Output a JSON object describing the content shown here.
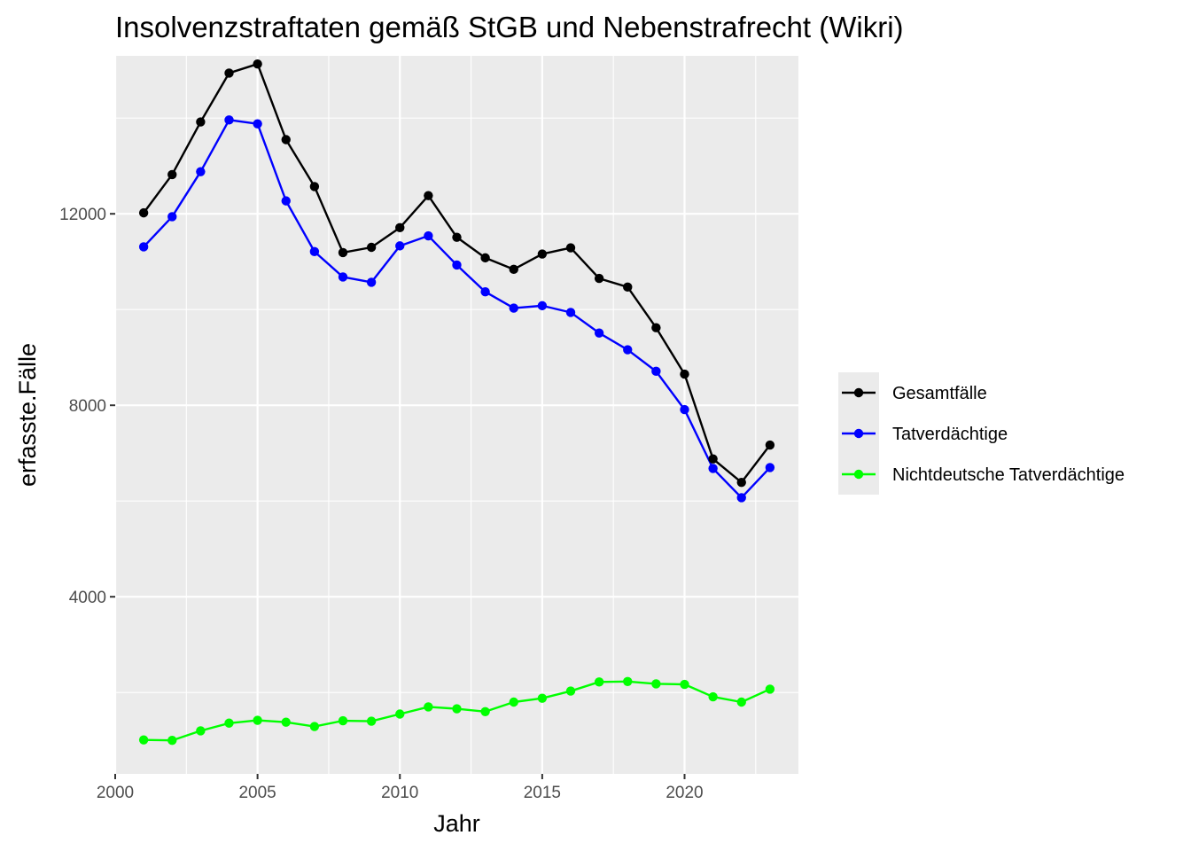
{
  "chart_data": {
    "type": "line",
    "title": "Insolvenzstraftaten gemäß StGB und Nebenstrafrecht (Wikri)",
    "xlabel": "Jahr",
    "ylabel": "erfasste.Fälle",
    "xlim": [
      2000,
      2024
    ],
    "ylim": [
      300,
      15300
    ],
    "x_ticks": [
      2000,
      2005,
      2010,
      2015,
      2020
    ],
    "x_tick_labels": [
      "2000",
      "2005",
      "2010",
      "2015",
      "2020"
    ],
    "y_ticks": [
      4000,
      8000,
      12000
    ],
    "y_tick_labels": [
      "4000",
      "8000",
      "12000"
    ],
    "grid": true,
    "legend_position": "right",
    "x": [
      2001,
      2002,
      2003,
      2004,
      2005,
      2006,
      2007,
      2008,
      2009,
      2010,
      2011,
      2012,
      2013,
      2014,
      2015,
      2016,
      2017,
      2018,
      2019,
      2020,
      2021,
      2022,
      2023
    ],
    "series": [
      {
        "name": "Gesamtfälle",
        "color": "#000000",
        "values": [
          12020,
          12820,
          13920,
          14940,
          15130,
          13550,
          12570,
          11190,
          11300,
          11710,
          12380,
          11510,
          11080,
          10840,
          11160,
          11290,
          10650,
          10470,
          9620,
          8650,
          6880,
          6390,
          7170
        ]
      },
      {
        "name": "Tatverdächtige",
        "color": "#0000ff",
        "values": [
          11310,
          11940,
          12880,
          13960,
          13880,
          12270,
          11210,
          10680,
          10570,
          11330,
          11540,
          10930,
          10370,
          10030,
          10080,
          9940,
          9510,
          9160,
          8710,
          7910,
          6680,
          6070,
          6700
        ]
      },
      {
        "name": "Nichtdeutsche Tatverdächtige",
        "color": "#00ff00",
        "values": [
          1010,
          1000,
          1200,
          1360,
          1420,
          1380,
          1290,
          1410,
          1400,
          1550,
          1700,
          1660,
          1600,
          1800,
          1880,
          2030,
          2220,
          2230,
          2180,
          2170,
          1910,
          1800,
          2070
        ]
      }
    ]
  }
}
